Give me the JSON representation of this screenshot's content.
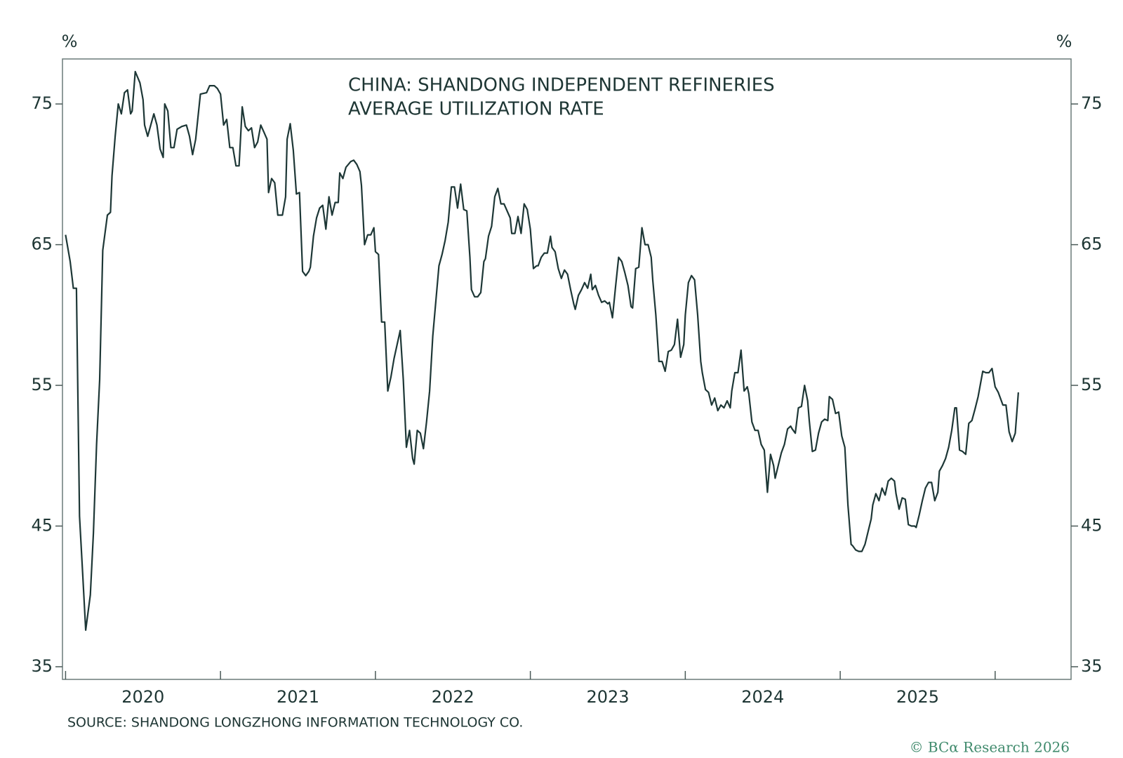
{
  "chart_data": {
    "type": "line",
    "title": [
      "CHINA: SHANDONG INDEPENDENT REFINERIES",
      "AVERAGE UTILIZATION RATE"
    ],
    "y_label": "%",
    "y2_label": "%",
    "source": "SOURCE: SHANDONG LONGZHONG INFORMATION TECHNOLOGY CO.",
    "copyright": "© BCα Research 2026",
    "xlim": [
      2019.98,
      2026.49
    ],
    "xticks": [
      2020,
      2021,
      2022,
      2023,
      2024,
      2025
    ],
    "ylim": [
      34.1,
      78.2
    ],
    "yticks": [
      35,
      45,
      55,
      65,
      75
    ],
    "y2lim": [
      34.1,
      78.2
    ],
    "y2ticks": [
      35,
      45,
      55,
      65,
      75
    ],
    "x": [
      2020.0,
      2020.03,
      2020.05,
      2020.07,
      2020.09,
      2020.11,
      2020.13,
      2020.16,
      2020.18,
      2020.2,
      2020.22,
      2020.24,
      2020.27,
      2020.29,
      2020.3,
      2020.32,
      2020.34,
      2020.36,
      2020.38,
      2020.4,
      2020.42,
      2020.43,
      2020.45,
      2020.48,
      2020.5,
      2020.51,
      2020.53,
      2020.57,
      2020.59,
      2020.61,
      2020.63,
      2020.64,
      2020.66,
      2020.68,
      2020.7,
      2020.72,
      2020.75,
      2020.78,
      2020.8,
      2020.82,
      2020.84,
      2020.87,
      2020.91,
      2020.93,
      2020.96,
      2020.98,
      2021.0,
      2021.02,
      2021.04,
      2021.06,
      2021.08,
      2021.1,
      2021.12,
      2021.14,
      2021.16,
      2021.18,
      2021.2,
      2021.22,
      2021.24,
      2021.26,
      2021.28,
      2021.3,
      2021.31,
      2021.33,
      2021.35,
      2021.37,
      2021.4,
      2021.42,
      2021.43,
      2021.45,
      2021.47,
      2021.49,
      2021.51,
      2021.53,
      2021.55,
      2021.57,
      2021.58,
      2021.6,
      2021.62,
      2021.64,
      2021.66,
      2021.68,
      2021.7,
      2021.72,
      2021.74,
      2021.76,
      2021.77,
      2021.79,
      2021.81,
      2021.84,
      2021.86,
      2021.88,
      2021.9,
      2021.91,
      2021.93,
      2021.95,
      2021.97,
      2021.99,
      2022.0,
      2022.02,
      2022.04,
      2022.06,
      2022.08,
      2022.1,
      2022.12,
      2022.14,
      2022.16,
      2022.18,
      2022.2,
      2022.22,
      2022.24,
      2022.25,
      2022.27,
      2022.29,
      2022.31,
      2022.33,
      2022.35,
      2022.37,
      2022.39,
      2022.41,
      2022.43,
      2022.45,
      2022.47,
      2022.49,
      2022.51,
      2022.53,
      2022.55,
      2022.57,
      2022.59,
      2022.61,
      2022.62,
      2022.64,
      2022.66,
      2022.68,
      2022.7,
      2022.71,
      2022.73,
      2022.75,
      2022.77,
      2022.79,
      2022.81,
      2022.83,
      2022.85,
      2022.87,
      2022.88,
      2022.9,
      2022.92,
      2022.94,
      2022.96,
      2022.98,
      2023.0,
      2023.02,
      2023.04,
      2023.05,
      2023.07,
      2023.09,
      2023.11,
      2023.13,
      2023.14,
      2023.16,
      2023.18,
      2023.2,
      2023.22,
      2023.24,
      2023.26,
      2023.28,
      2023.29,
      2023.31,
      2023.33,
      2023.35,
      2023.37,
      2023.39,
      2023.4,
      2023.42,
      2023.44,
      2023.46,
      2023.48,
      2023.5,
      2023.51,
      2023.53,
      2023.55,
      2023.57,
      2023.59,
      2023.61,
      2023.63,
      2023.65,
      2023.66,
      2023.68,
      2023.7,
      2023.72,
      2023.74,
      2023.76,
      2023.78,
      2023.79,
      2023.81,
      2023.83,
      2023.85,
      2023.87,
      2023.89,
      2023.91,
      2023.93,
      2023.95,
      2023.97,
      2023.99,
      2024.0,
      2024.02,
      2024.04,
      2024.06,
      2024.08,
      2024.1,
      2024.11,
      2024.13,
      2024.15,
      2024.17,
      2024.19,
      2024.21,
      2024.23,
      2024.25,
      2024.27,
      2024.29,
      2024.3,
      2024.32,
      2024.34,
      2024.36,
      2024.38,
      2024.4,
      2024.41,
      2024.43,
      2024.45,
      2024.47,
      2024.49,
      2024.51,
      2024.53,
      2024.55,
      2024.57,
      2024.58,
      2024.6,
      2024.62,
      2024.64,
      2024.66,
      2024.68,
      2024.69,
      2024.71,
      2024.73,
      2024.75,
      2024.77,
      2024.79,
      2024.8,
      2024.82,
      2024.84,
      2024.86,
      2024.88,
      2024.9,
      2024.92,
      2024.93,
      2024.95,
      2024.97,
      2024.99,
      2025.01,
      2025.03,
      2025.05,
      2025.07,
      2025.08,
      2025.1,
      2025.12,
      2025.14,
      2025.16,
      2025.18,
      2025.2,
      2025.21,
      2025.23,
      2025.25,
      2025.27,
      2025.29,
      2025.31,
      2025.33,
      2025.35,
      2025.36,
      2025.38,
      2025.4,
      2025.42,
      2025.44,
      2025.46,
      2025.48,
      2025.49,
      2025.51,
      2025.53,
      2025.55,
      2025.57,
      2025.59,
      2025.61,
      2025.63,
      2025.64,
      2025.66,
      2025.68,
      2025.7,
      2025.72,
      2025.74,
      2025.75,
      2025.77,
      2025.79,
      2025.81,
      2025.83,
      2025.85,
      2025.87,
      2025.89,
      2025.9,
      2025.92,
      2025.94,
      2025.96,
      2025.98,
      2026.0,
      2026.02,
      2026.04,
      2026.05,
      2026.07,
      2026.09,
      2026.11,
      2026.13,
      2026.15
    ],
    "series": [
      {
        "name": "Average utilization rate",
        "color": "#1d3736",
        "values": [
          65.7,
          63.8,
          61.9,
          61.9,
          45.7,
          41.7,
          37.6,
          40.1,
          44.5,
          50.8,
          55.4,
          64.6,
          67.1,
          67.3,
          69.9,
          72.7,
          75.0,
          74.3,
          75.8,
          76.0,
          74.3,
          74.5,
          77.3,
          76.5,
          75.3,
          73.5,
          72.7,
          74.3,
          73.5,
          71.8,
          71.2,
          75.0,
          74.5,
          71.9,
          71.9,
          73.2,
          73.4,
          73.5,
          72.7,
          71.4,
          72.5,
          75.7,
          75.8,
          76.3,
          76.3,
          76.1,
          75.7,
          73.5,
          73.9,
          71.9,
          71.9,
          70.6,
          70.6,
          74.8,
          73.4,
          73.1,
          73.3,
          71.9,
          72.3,
          73.5,
          73.0,
          72.5,
          68.7,
          69.7,
          69.4,
          67.1,
          67.1,
          68.4,
          72.5,
          73.6,
          71.7,
          68.6,
          68.7,
          63.1,
          62.8,
          63.1,
          63.4,
          65.6,
          66.9,
          67.6,
          67.8,
          66.1,
          68.4,
          67.1,
          68.0,
          68.0,
          70.1,
          69.7,
          70.5,
          70.9,
          71.0,
          70.7,
          70.2,
          69.2,
          65.0,
          65.7,
          65.7,
          66.2,
          64.5,
          64.3,
          59.5,
          59.5,
          54.6,
          55.6,
          56.9,
          57.9,
          58.9,
          55.4,
          50.6,
          51.8,
          49.8,
          49.4,
          51.8,
          51.6,
          50.5,
          52.4,
          54.6,
          58.5,
          61.0,
          63.5,
          64.3,
          65.3,
          66.6,
          69.1,
          69.1,
          67.6,
          69.3,
          67.5,
          67.4,
          64.1,
          61.8,
          61.3,
          61.3,
          61.6,
          63.8,
          64.0,
          65.6,
          66.3,
          68.4,
          69.0,
          67.9,
          67.9,
          67.4,
          66.9,
          65.8,
          65.8,
          67.0,
          65.8,
          67.9,
          67.5,
          66.1,
          63.3,
          63.5,
          63.5,
          64.1,
          64.4,
          64.4,
          65.6,
          64.8,
          64.5,
          63.3,
          62.6,
          63.2,
          62.9,
          61.8,
          60.8,
          60.4,
          61.4,
          61.8,
          62.3,
          61.9,
          62.9,
          61.8,
          62.1,
          61.4,
          60.9,
          61.0,
          60.8,
          60.9,
          59.8,
          62.0,
          64.1,
          63.8,
          63.0,
          62.1,
          60.6,
          60.5,
          63.3,
          63.4,
          66.2,
          65.0,
          65.0,
          64.1,
          62.5,
          60.0,
          56.7,
          56.7,
          56.0,
          57.4,
          57.5,
          57.9,
          59.7,
          57.0,
          57.9,
          60.0,
          62.3,
          62.8,
          62.5,
          60.0,
          56.7,
          55.9,
          54.7,
          54.5,
          53.6,
          54.1,
          53.2,
          53.6,
          53.4,
          53.9,
          53.4,
          54.6,
          55.9,
          55.9,
          57.5,
          54.6,
          54.9,
          54.4,
          52.4,
          51.8,
          51.8,
          50.8,
          50.4,
          47.4,
          50.1,
          49.3,
          48.4,
          49.3,
          50.2,
          50.8,
          51.9,
          52.1,
          51.9,
          51.6,
          53.4,
          53.5,
          55.0,
          53.9,
          52.5,
          50.3,
          50.4,
          51.6,
          52.4,
          52.6,
          52.5,
          54.2,
          54.0,
          53.0,
          53.1,
          51.4,
          50.6,
          46.5,
          43.7,
          43.6,
          43.3,
          43.2,
          43.2,
          43.7,
          44.6,
          45.5,
          46.5,
          47.3,
          46.8,
          47.7,
          47.2,
          48.2,
          48.4,
          48.2,
          47.3,
          46.2,
          47.0,
          46.9,
          45.1,
          45.0,
          45.0,
          44.9,
          45.8,
          46.8,
          47.7,
          48.1,
          48.1,
          46.8,
          47.4,
          48.9,
          49.3,
          49.8,
          50.6,
          51.8,
          53.4,
          53.4,
          50.4,
          50.3,
          50.1,
          52.3,
          52.5,
          53.3,
          54.2,
          54.8,
          56.0,
          55.9,
          55.9,
          56.2,
          54.9,
          54.5,
          53.9,
          53.6,
          53.6,
          51.7,
          51.0,
          51.6,
          54.5
        ]
      }
    ]
  }
}
